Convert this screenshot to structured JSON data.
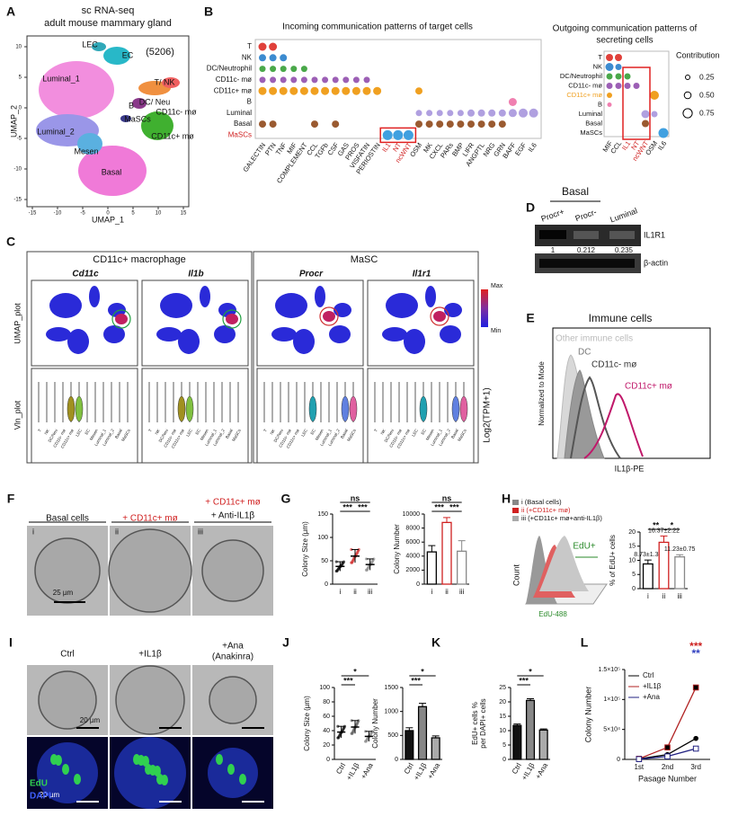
{
  "panel_labels": [
    "A",
    "B",
    "C",
    "D",
    "E",
    "F",
    "G",
    "H",
    "I",
    "J",
    "K",
    "L"
  ],
  "A": {
    "title": [
      "sc RNA-seq",
      "adult mouse mammary gland"
    ],
    "count": "(5206)",
    "clusters": [
      "LEC",
      "EC",
      "Luminal_1",
      "T/ NK",
      "DC/ Neu",
      "B",
      "MaSCs",
      "CD11c- mø",
      "CD11c+ mø",
      "Luminal_2",
      "Mesen",
      "Basal"
    ],
    "x_label": "UMAP_1",
    "y_label": "UMAP_2",
    "xticks": [
      -15,
      -10,
      -5,
      0,
      5,
      10,
      15
    ],
    "yticks": [
      -15,
      -10,
      -5,
      0,
      5,
      10
    ]
  },
  "B": {
    "incoming_title": "Incoming communication patterns of target cells",
    "rows": [
      "T",
      "NK",
      "DC/Neutrophil",
      "CD11c- mø",
      "CD11c+ mø",
      "B",
      "Luminal",
      "Basal",
      "MaSCs"
    ],
    "row_colors": [
      "#e0403a",
      "#3c8bd0",
      "#4aa84a",
      "#9c5fb5",
      "#f0a020",
      "#f080b0",
      "#b0a0e0",
      "#9a5a30",
      "#40a0e0"
    ],
    "incoming_cols": [
      "GALECTIN",
      "PTN",
      "TNF",
      "MIF",
      "COMPLEMENT",
      "CCL",
      "TGFb",
      "CSF",
      "GAS",
      "PROS",
      "VISFATIN",
      "PERIOSTIN",
      "IL1",
      "NT",
      "ncWNT",
      "OSM",
      "MK",
      "CXCL",
      "PARs",
      "BMP",
      "LIFR",
      "ANGPTL",
      "NRG",
      "GRN",
      "BAFF",
      "EGF",
      "IL6"
    ],
    "incoming": [
      [
        0.6,
        0.6,
        0,
        0,
        0,
        0,
        0,
        0,
        0,
        0,
        0,
        0,
        0,
        0,
        0,
        0,
        0,
        0,
        0,
        0,
        0,
        0,
        0,
        0,
        0,
        0,
        0
      ],
      [
        0.5,
        0.5,
        0.5,
        0,
        0,
        0,
        0,
        0,
        0,
        0,
        0,
        0,
        0,
        0,
        0,
        0,
        0,
        0,
        0,
        0,
        0,
        0,
        0,
        0,
        0,
        0,
        0
      ],
      [
        0.4,
        0.4,
        0.4,
        0.4,
        0.4,
        0,
        0,
        0,
        0,
        0,
        0,
        0,
        0,
        0,
        0,
        0,
        0,
        0,
        0,
        0,
        0,
        0,
        0,
        0,
        0,
        0,
        0
      ],
      [
        0.4,
        0.4,
        0.4,
        0.4,
        0.4,
        0.4,
        0.4,
        0.4,
        0.4,
        0.4,
        0.4,
        0,
        0,
        0,
        0,
        0,
        0,
        0,
        0,
        0,
        0,
        0,
        0,
        0,
        0,
        0,
        0
      ],
      [
        0.6,
        0.6,
        0.6,
        0.6,
        0.6,
        0.6,
        0.6,
        0.6,
        0.6,
        0.6,
        0.6,
        0.6,
        0,
        0,
        0,
        0.5,
        0,
        0,
        0,
        0,
        0,
        0,
        0,
        0,
        0,
        0,
        0
      ],
      [
        0,
        0,
        0,
        0,
        0,
        0,
        0,
        0,
        0,
        0,
        0,
        0,
        0,
        0,
        0,
        0,
        0,
        0,
        0,
        0,
        0,
        0,
        0,
        0,
        0.6,
        0,
        0
      ],
      [
        0,
        0,
        0,
        0,
        0,
        0,
        0,
        0,
        0,
        0,
        0,
        0,
        0,
        0,
        0,
        0.4,
        0.4,
        0.4,
        0.4,
        0.4,
        0.5,
        0.5,
        0.5,
        0.5,
        0.6,
        0.7,
        0.7
      ],
      [
        0.5,
        0.5,
        0,
        0,
        0,
        0.5,
        0,
        0.5,
        0,
        0,
        0,
        0,
        0,
        0,
        0,
        0.5,
        0.5,
        0.5,
        0.5,
        0.5,
        0.5,
        0.5,
        0.5,
        0.5,
        0,
        0,
        0
      ],
      [
        0,
        0,
        0,
        0,
        0,
        0,
        0,
        0,
        0,
        0,
        0,
        0,
        0.8,
        0.8,
        0.8,
        0,
        0,
        0,
        0,
        0,
        0,
        0,
        0,
        0,
        0,
        0,
        0
      ]
    ],
    "outgoing_title": [
      "Outgoing communication patterns of",
      "secreting cells"
    ],
    "outgoing_cols": [
      "MIF",
      "CCL",
      "IL1",
      "NT",
      "ncWNT",
      "OSM",
      "IL6"
    ],
    "outgoing": [
      [
        0.5,
        0.5,
        0,
        0,
        0,
        0,
        0
      ],
      [
        0.6,
        0.4,
        0,
        0,
        0,
        0,
        0
      ],
      [
        0.4,
        0.4,
        0.4,
        0,
        0,
        0,
        0
      ],
      [
        0.4,
        0.4,
        0.4,
        0.4,
        0,
        0,
        0
      ],
      [
        0.3,
        0,
        0,
        0,
        0,
        0.7,
        0
      ],
      [
        0.2,
        0,
        0,
        0,
        0,
        0,
        0
      ],
      [
        0,
        0,
        0,
        0,
        0.6,
        0.4,
        0
      ],
      [
        0,
        0,
        0,
        0,
        0.5,
        0,
        0
      ],
      [
        0,
        0,
        0,
        0,
        0,
        0,
        0.8
      ]
    ],
    "legend_title": "Contribution",
    "legend_labels": [
      "0.25",
      "0.50",
      "0.75"
    ]
  },
  "C": {
    "groups": [
      "CD11c+ macrophage",
      "MaSC"
    ],
    "genes": [
      "Cd11c",
      "Il1b",
      "Procr",
      "Il1r1"
    ],
    "row_labels": [
      "UMAP_plot",
      "Vln_plot"
    ],
    "scale": [
      "Max",
      "Min"
    ],
    "vln_axis": "Log2(TPM+1)",
    "vln_categories": [
      "T",
      "NK",
      "DC/Neu",
      "CD11c- mø",
      "CD11c+ mø",
      "LEC",
      "EC",
      "Mesen",
      "Luminal_1",
      "Luminal_2",
      "Basal",
      "MaSCs"
    ]
  },
  "D": {
    "group": "Basal",
    "lanes": [
      "Procr+",
      "Procr-",
      "Luminal"
    ],
    "bands": [
      "IL1R1",
      "β-actin"
    ],
    "values": [
      1,
      0.212,
      0.235
    ]
  },
  "E": {
    "title": "Immune cells",
    "legend": [
      "Other immune cells",
      "DC",
      "CD11c- mø",
      "CD11c+ mø"
    ],
    "y_label": "Normalized to Mode",
    "x_label": "IL1β-PE"
  },
  "F": {
    "conditions": [
      "Basal cells",
      "+ CD11c+ mø"
    ],
    "condition3": [
      "+ CD11c+ mø",
      "+ Anti-IL1β"
    ],
    "roman": [
      "i",
      "ii",
      "iii"
    ],
    "scale": "25 µm"
  },
  "G": {
    "size": {
      "type": "mean-sd",
      "ylabel": "Colony Size (µm)",
      "categories": [
        "i",
        "ii",
        "iii"
      ],
      "values": [
        38,
        60,
        42
      ],
      "errors": [
        10,
        14,
        12
      ],
      "ylim": [
        0,
        150
      ],
      "yticks": [
        0,
        50,
        100,
        150
      ],
      "colors": [
        "#000000",
        "#d02020",
        "#888888"
      ],
      "significance": [
        "ns",
        "***",
        "***"
      ]
    },
    "number": {
      "type": "bar",
      "ylabel": "Colony Number",
      "categories": [
        "i",
        "ii",
        "iii"
      ],
      "values": [
        4600,
        8800,
        4700
      ],
      "errors": [
        900,
        700,
        1500
      ],
      "ylim": [
        0,
        10000
      ],
      "yticks": [
        0,
        2000,
        4000,
        6000,
        8000,
        10000
      ],
      "fill": [
        "#ffffff",
        "#ffffff",
        "#ffffff"
      ],
      "colors": [
        "#000000",
        "#d02020",
        "#888888"
      ],
      "significance": [
        "ns",
        "***",
        "***"
      ]
    }
  },
  "H": {
    "legend": [
      "i (Basal cells)",
      "ii (+CD11c+ mø)",
      "iii (+CD11c+ mø+anti-IL1β)"
    ],
    "gate": "EdU+",
    "y_label": "Count",
    "x_label": "EdU-488",
    "percent": {
      "type": "bar",
      "ylabel": "% of EdU+ cells",
      "categories": [
        "i",
        "ii",
        "iii"
      ],
      "values": [
        8.73,
        16.37,
        11.23
      ],
      "errors": [
        1.38,
        2.22,
        0.75
      ],
      "value_labels": [
        "8.73±1.38",
        "16.37±2.22",
        "11.23±0.75"
      ],
      "ylim": [
        0,
        20
      ],
      "yticks": [
        0,
        5,
        10,
        15,
        20
      ],
      "fill": [
        "#ffffff",
        "#ffffff",
        "#ffffff"
      ],
      "colors": [
        "#000000",
        "#d02020",
        "#888888"
      ],
      "significance": [
        "**",
        "*"
      ]
    }
  },
  "I": {
    "conditions": [
      "Ctrl",
      "+IL1β"
    ],
    "condition3": [
      "+Ana",
      "(Anakinra)"
    ],
    "scale": "20 µm",
    "stains": [
      "EdU",
      "DAPI"
    ]
  },
  "J": {
    "size": {
      "type": "mean-sd",
      "ylabel": "Colony Size (µm)",
      "categories": [
        "Ctrl",
        "+IL1β",
        "+Ana"
      ],
      "values": [
        38,
        45,
        32
      ],
      "errors": [
        8,
        9,
        7
      ],
      "ylim": [
        0,
        100
      ],
      "yticks": [
        0,
        20,
        40,
        60,
        80,
        100
      ],
      "colors": [
        "#000000",
        "#555555",
        "#888888"
      ],
      "significance": [
        "***",
        "*"
      ]
    },
    "number": {
      "type": "bar",
      "ylabel": "Colony Number",
      "categories": [
        "Ctrl",
        "+IL1β",
        "+Ana"
      ],
      "values": [
        600,
        1100,
        450
      ],
      "errors": [
        60,
        70,
        40
      ],
      "ylim": [
        0,
        1500
      ],
      "yticks": [
        0,
        500,
        1000,
        1500
      ],
      "fill": [
        "#111111",
        "#888888",
        "#aaaaaa"
      ],
      "colors": [
        "#000000",
        "#000000",
        "#000000"
      ],
      "significance": [
        "***",
        "*"
      ]
    }
  },
  "K": {
    "percent": {
      "type": "bar",
      "ylabel": [
        "EdU+ cells %",
        "per DAPI+ cells"
      ],
      "categories": [
        "Ctrl",
        "+IL1β",
        "+Ana"
      ],
      "values": [
        11.8,
        20.5,
        10.2
      ],
      "errors": [
        0.5,
        0.6,
        0.4
      ],
      "ylim": [
        0,
        25
      ],
      "yticks": [
        0,
        5,
        10,
        15,
        20,
        25
      ],
      "fill": [
        "#111111",
        "#888888",
        "#aaaaaa"
      ],
      "colors": [
        "#000000",
        "#000000",
        "#000000"
      ],
      "significance": [
        "***",
        "*"
      ]
    }
  },
  "L": {
    "chart": {
      "type": "line",
      "ylabel": "Colony Number",
      "xlabel": "Pasage Number",
      "categories": [
        "1st",
        "2nd",
        "3rd"
      ],
      "ylim": [
        0,
        150000
      ],
      "yticks": [
        0,
        {
          "value": 50000,
          "label": "5×10⁴"
        },
        {
          "value": 100000,
          "label": "1×10⁵"
        },
        {
          "value": 150000,
          "label": "1.5×10⁵"
        }
      ],
      "series": [
        {
          "name": "Ctrl",
          "color": "#000000",
          "marker": "circle",
          "values": [
            1000,
            8000,
            35000
          ]
        },
        {
          "name": "+IL1β",
          "color": "#b02020",
          "marker": "square",
          "values": [
            1000,
            20000,
            120000
          ]
        },
        {
          "name": "+Ana",
          "color": "#202080",
          "marker": "open-square",
          "values": [
            500,
            5000,
            18000
          ]
        }
      ],
      "significance": [
        "***",
        "**"
      ],
      "significance_colors": [
        "#cc2020",
        "#3040c0"
      ]
    }
  }
}
